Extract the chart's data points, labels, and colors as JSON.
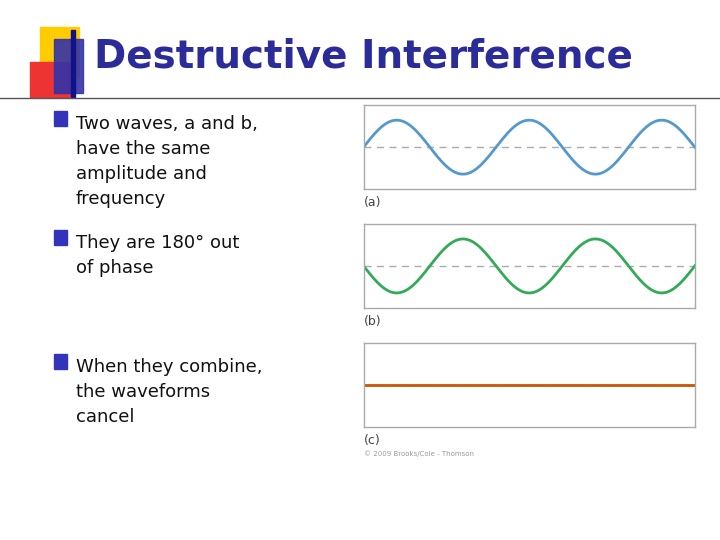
{
  "title": "Destructive Interference",
  "title_color": "#2b2b99",
  "title_fontsize": 28,
  "background_color": "#ffffff",
  "bullet_points": [
    "Two waves, a and b,\nhave the same\namplitude and\nfrequency",
    "They are 180° out\nof phase",
    "When they combine,\nthe waveforms\ncancel"
  ],
  "bullet_color": "#111111",
  "bullet_marker_color": "#3333bb",
  "bullet_fontsize": 13,
  "wave_a_color": "#5599cc",
  "wave_b_color": "#33aa55",
  "wave_c_color": "#cc5500",
  "dashed_line_color": "#aaaaaa",
  "box_edge_color": "#aaaaaa",
  "label_color": "#444444",
  "label_fontsize": 9,
  "n_cycles": 2.5,
  "amplitude": 1.0,
  "header_bar_color": "#111188",
  "accent_yellow": "#ffcc00",
  "accent_red": "#ee3333",
  "accent_blue": "#3333aa",
  "copyright_text": "© 2009 Brooks/Cole - Thomson",
  "copyright_fontsize": 5,
  "title_line_color": "#555555"
}
